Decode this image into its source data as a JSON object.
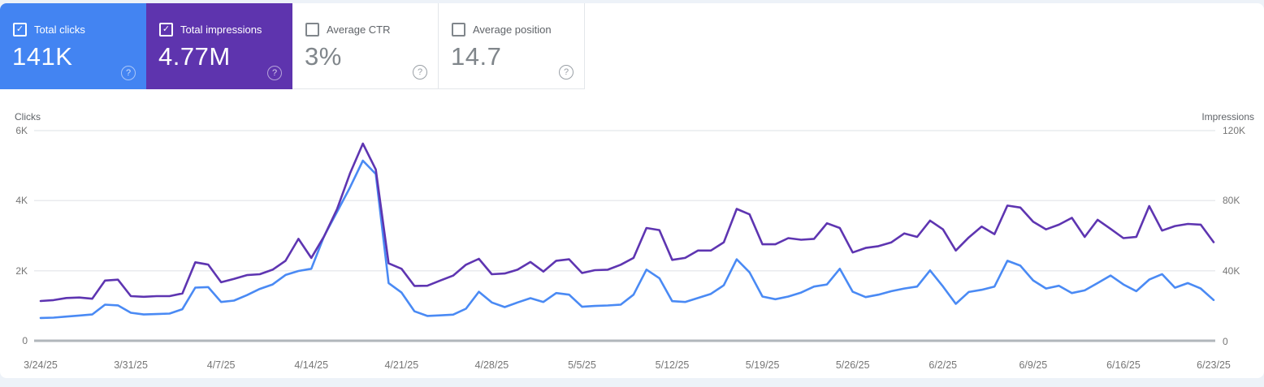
{
  "cards": [
    {
      "label": "Total clicks",
      "value": "141K",
      "checked": true,
      "bg": "#4384f2",
      "help_symbol": "?"
    },
    {
      "label": "Total impressions",
      "value": "4.77M",
      "checked": true,
      "bg": "#5e34ae",
      "help_symbol": "?"
    },
    {
      "label": "Average CTR",
      "value": "3%",
      "checked": false,
      "bg": "",
      "help_symbol": "?"
    },
    {
      "label": "Average position",
      "value": "14.7",
      "checked": false,
      "bg": "",
      "help_symbol": "?"
    }
  ],
  "checkmark_glyph": "✓",
  "chart_data": {
    "type": "line",
    "left_axis": {
      "title": "Clicks",
      "ticks": [
        "6K",
        "4K",
        "2K",
        "0"
      ],
      "max": 6000
    },
    "right_axis": {
      "title": "Impressions",
      "ticks": [
        "120K",
        "80K",
        "40K",
        "0"
      ],
      "max": 120000
    },
    "x_tick_labels": [
      "3/24/25",
      "3/31/25",
      "4/7/25",
      "4/14/25",
      "4/21/25",
      "4/28/25",
      "5/5/25",
      "5/12/25",
      "5/19/25",
      "5/26/25",
      "6/2/25",
      "6/9/25",
      "6/16/25",
      "6/23/25"
    ],
    "x_range": [
      "3/24/25",
      "6/23/25"
    ],
    "grid": true,
    "legend_position": "none",
    "series": [
      {
        "name": "Clicks",
        "axis": "left",
        "color": "#4a8af4",
        "values": [
          650,
          660,
          690,
          720,
          750,
          1030,
          1010,
          800,
          750,
          762,
          777,
          900,
          1518,
          1532,
          1108,
          1147,
          1301,
          1480,
          1608,
          1878,
          1993,
          2054,
          2992,
          3684,
          4376,
          5144,
          4761,
          1647,
          1377,
          840,
          709,
          724,
          747,
          916,
          1400,
          1093,
          962,
          1093,
          1216,
          1108,
          1362,
          1316,
          970,
          993,
          1008,
          1031,
          1316,
          2031,
          1786,
          1131,
          1108,
          1223,
          1339,
          1585,
          2325,
          1954,
          1262,
          1185,
          1262,
          1377,
          1547,
          1608,
          2054,
          1400,
          1246,
          1316,
          1416,
          1493,
          1547,
          2008,
          1550,
          1054,
          1393,
          1454,
          1547,
          2284,
          2146,
          1723,
          1493,
          1570,
          1362,
          1439,
          1647,
          1862,
          1608,
          1416,
          1747,
          1901,
          1516,
          1647,
          1493,
          1162
        ]
      },
      {
        "name": "Impressions",
        "axis": "right",
        "color": "#5e35b1",
        "values": [
          22700,
          23200,
          24400,
          24700,
          24000,
          34400,
          34900,
          25500,
          25100,
          25500,
          25500,
          27000,
          44800,
          43500,
          33400,
          35300,
          37500,
          38000,
          40600,
          45700,
          58200,
          47300,
          59700,
          75300,
          95500,
          112600,
          97800,
          44200,
          41100,
          31300,
          31400,
          34400,
          37200,
          43400,
          46800,
          38000,
          38400,
          40600,
          45000,
          39500,
          45700,
          46500,
          38700,
          40300,
          40600,
          43400,
          47300,
          64400,
          63200,
          46200,
          47300,
          51500,
          51500,
          56200,
          75300,
          72200,
          55100,
          55100,
          58600,
          57700,
          58200,
          67100,
          64400,
          50400,
          53000,
          54000,
          56200,
          61300,
          59300,
          68600,
          63600,
          51500,
          59000,
          65200,
          60900,
          77200,
          76100,
          68000,
          63600,
          66300,
          70200,
          59300,
          69100,
          63900,
          58600,
          59300,
          76900,
          62900,
          65500,
          66700,
          66300,
          56300
        ]
      }
    ]
  }
}
